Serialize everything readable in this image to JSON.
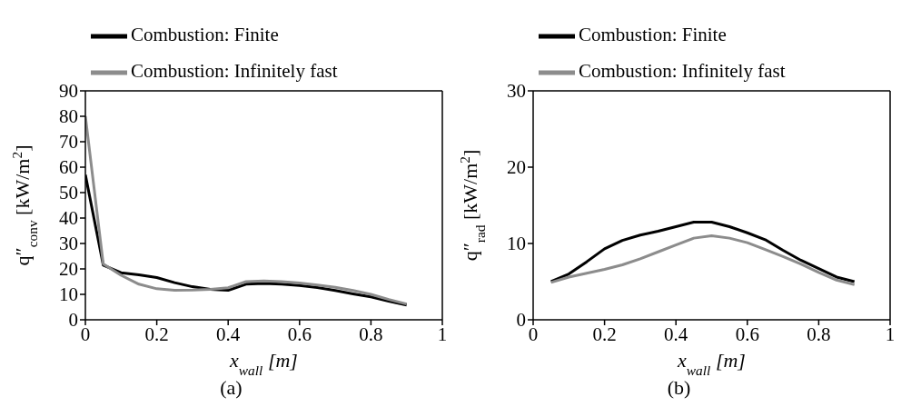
{
  "chart_data": [
    {
      "type": "line",
      "title": "(a)",
      "xlabel": "x$_{wall}$ [m]",
      "ylabel": "q″$_{conv}$ [kW/m$^{2}$]",
      "xlim": [
        0,
        1
      ],
      "xticks": [
        0,
        0.2,
        0.4,
        0.6,
        0.8,
        1
      ],
      "ylim": [
        0,
        90
      ],
      "yticks": [
        0,
        10,
        20,
        30,
        40,
        50,
        60,
        70,
        80,
        90
      ],
      "grid": false,
      "legend": "top left",
      "marker": "none",
      "line_style": "solid",
      "x": [
        0,
        0.05,
        0.1,
        0.15,
        0.2,
        0.25,
        0.3,
        0.35,
        0.4,
        0.45,
        0.5,
        0.55,
        0.6,
        0.65,
        0.7,
        0.75,
        0.8,
        0.85,
        0.9
      ],
      "series": [
        {
          "name": "Combustion: Finite",
          "color": "#000000",
          "values": [
            57,
            21.5,
            18.5,
            17.7,
            16.6,
            14.6,
            13,
            12,
            11.6,
            14,
            14.3,
            14,
            13.5,
            12.7,
            11.5,
            10.2,
            9,
            7.3,
            5.8
          ]
        },
        {
          "name": "Combustion: Infinitely fast",
          "color": "#8c8c8c",
          "values": [
            80,
            22,
            17.5,
            14,
            12.2,
            11.6,
            11.7,
            12,
            12.6,
            15,
            15.3,
            15,
            14.5,
            13.7,
            12.8,
            11.5,
            10,
            8,
            6.2
          ]
        }
      ]
    },
    {
      "type": "line",
      "title": "(b)",
      "xlabel": "x$_{wall}$ [m]",
      "ylabel": "q″$_{rad}$ [kW/m$^{2}$]",
      "xlim": [
        0,
        1
      ],
      "xticks": [
        0,
        0.2,
        0.4,
        0.6,
        0.8,
        1
      ],
      "ylim": [
        0,
        30
      ],
      "yticks": [
        0,
        10,
        20,
        30
      ],
      "grid": false,
      "legend": "top left",
      "marker": "none",
      "line_style": "solid",
      "x": [
        0.05,
        0.1,
        0.15,
        0.2,
        0.25,
        0.3,
        0.35,
        0.4,
        0.45,
        0.5,
        0.55,
        0.6,
        0.65,
        0.7,
        0.75,
        0.8,
        0.85,
        0.9
      ],
      "series": [
        {
          "name": "Combustion: Finite",
          "color": "#000000",
          "values": [
            5,
            6,
            7.6,
            9.3,
            10.4,
            11.1,
            11.6,
            12.2,
            12.8,
            12.8,
            12.2,
            11.4,
            10.5,
            9.1,
            7.8,
            6.7,
            5.6,
            5
          ]
        },
        {
          "name": "Combustion: Infinitely fast",
          "color": "#8c8c8c",
          "values": [
            4.9,
            5.6,
            6.1,
            6.6,
            7.2,
            8,
            8.9,
            9.8,
            10.7,
            11,
            10.7,
            10.1,
            9.2,
            8.3,
            7.3,
            6.2,
            5.2,
            4.6
          ]
        }
      ]
    }
  ]
}
